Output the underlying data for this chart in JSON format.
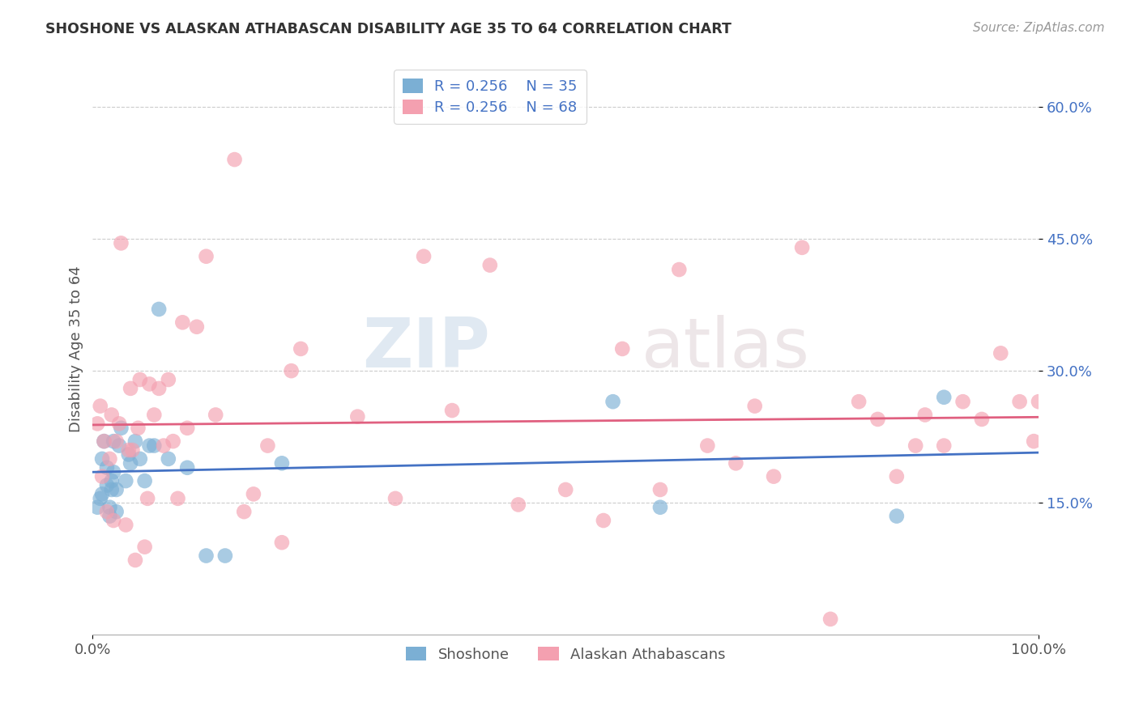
{
  "title": "SHOSHONE VS ALASKAN ATHABASCAN DISABILITY AGE 35 TO 64 CORRELATION CHART",
  "source": "Source: ZipAtlas.com",
  "ylabel": "Disability Age 35 to 64",
  "xlim": [
    0.0,
    1.0
  ],
  "ylim": [
    0.0,
    0.65
  ],
  "ytick_vals": [
    0.15,
    0.3,
    0.45,
    0.6
  ],
  "ytick_labels": [
    "15.0%",
    "30.0%",
    "45.0%",
    "60.0%"
  ],
  "xtick_vals": [
    0.0,
    1.0
  ],
  "xtick_labels": [
    "0.0%",
    "100.0%"
  ],
  "grid_color": "#cccccc",
  "background_color": "#ffffff",
  "shoshone_color": "#7bafd4",
  "athabascan_color": "#f4a0b0",
  "shoshone_line_color": "#4472c4",
  "athabascan_line_color": "#e06080",
  "legend_r_shoshone": "R = 0.256",
  "legend_n_shoshone": "N = 35",
  "legend_r_athabascan": "R = 0.256",
  "legend_n_athabascan": "N = 68",
  "watermark_zip": "ZIP",
  "watermark_atlas": "atlas",
  "shoshone_x": [
    0.005,
    0.008,
    0.01,
    0.01,
    0.012,
    0.015,
    0.015,
    0.018,
    0.018,
    0.02,
    0.02,
    0.022,
    0.022,
    0.025,
    0.025,
    0.028,
    0.03,
    0.035,
    0.038,
    0.04,
    0.045,
    0.05,
    0.055,
    0.06,
    0.065,
    0.07,
    0.08,
    0.1,
    0.12,
    0.14,
    0.2,
    0.55,
    0.6,
    0.85,
    0.9
  ],
  "shoshone_y": [
    0.145,
    0.155,
    0.16,
    0.2,
    0.22,
    0.17,
    0.19,
    0.135,
    0.145,
    0.165,
    0.175,
    0.185,
    0.22,
    0.14,
    0.165,
    0.215,
    0.235,
    0.175,
    0.205,
    0.195,
    0.22,
    0.2,
    0.175,
    0.215,
    0.215,
    0.37,
    0.2,
    0.19,
    0.09,
    0.09,
    0.195,
    0.265,
    0.145,
    0.135,
    0.27
  ],
  "athabascan_x": [
    0.005,
    0.008,
    0.01,
    0.012,
    0.015,
    0.018,
    0.02,
    0.022,
    0.025,
    0.028,
    0.03,
    0.035,
    0.038,
    0.04,
    0.042,
    0.045,
    0.048,
    0.05,
    0.055,
    0.058,
    0.06,
    0.065,
    0.07,
    0.075,
    0.08,
    0.085,
    0.09,
    0.095,
    0.1,
    0.11,
    0.12,
    0.13,
    0.15,
    0.16,
    0.17,
    0.185,
    0.2,
    0.21,
    0.22,
    0.28,
    0.32,
    0.35,
    0.38,
    0.42,
    0.45,
    0.5,
    0.54,
    0.56,
    0.6,
    0.62,
    0.65,
    0.68,
    0.7,
    0.72,
    0.75,
    0.78,
    0.81,
    0.83,
    0.85,
    0.87,
    0.88,
    0.9,
    0.92,
    0.94,
    0.96,
    0.98,
    0.995,
    1.0
  ],
  "athabascan_y": [
    0.24,
    0.26,
    0.18,
    0.22,
    0.14,
    0.2,
    0.25,
    0.13,
    0.22,
    0.24,
    0.445,
    0.125,
    0.21,
    0.28,
    0.21,
    0.085,
    0.235,
    0.29,
    0.1,
    0.155,
    0.285,
    0.25,
    0.28,
    0.215,
    0.29,
    0.22,
    0.155,
    0.355,
    0.235,
    0.35,
    0.43,
    0.25,
    0.54,
    0.14,
    0.16,
    0.215,
    0.105,
    0.3,
    0.325,
    0.248,
    0.155,
    0.43,
    0.255,
    0.42,
    0.148,
    0.165,
    0.13,
    0.325,
    0.165,
    0.415,
    0.215,
    0.195,
    0.26,
    0.18,
    0.44,
    0.018,
    0.265,
    0.245,
    0.18,
    0.215,
    0.25,
    0.215,
    0.265,
    0.245,
    0.32,
    0.265,
    0.22,
    0.265
  ]
}
